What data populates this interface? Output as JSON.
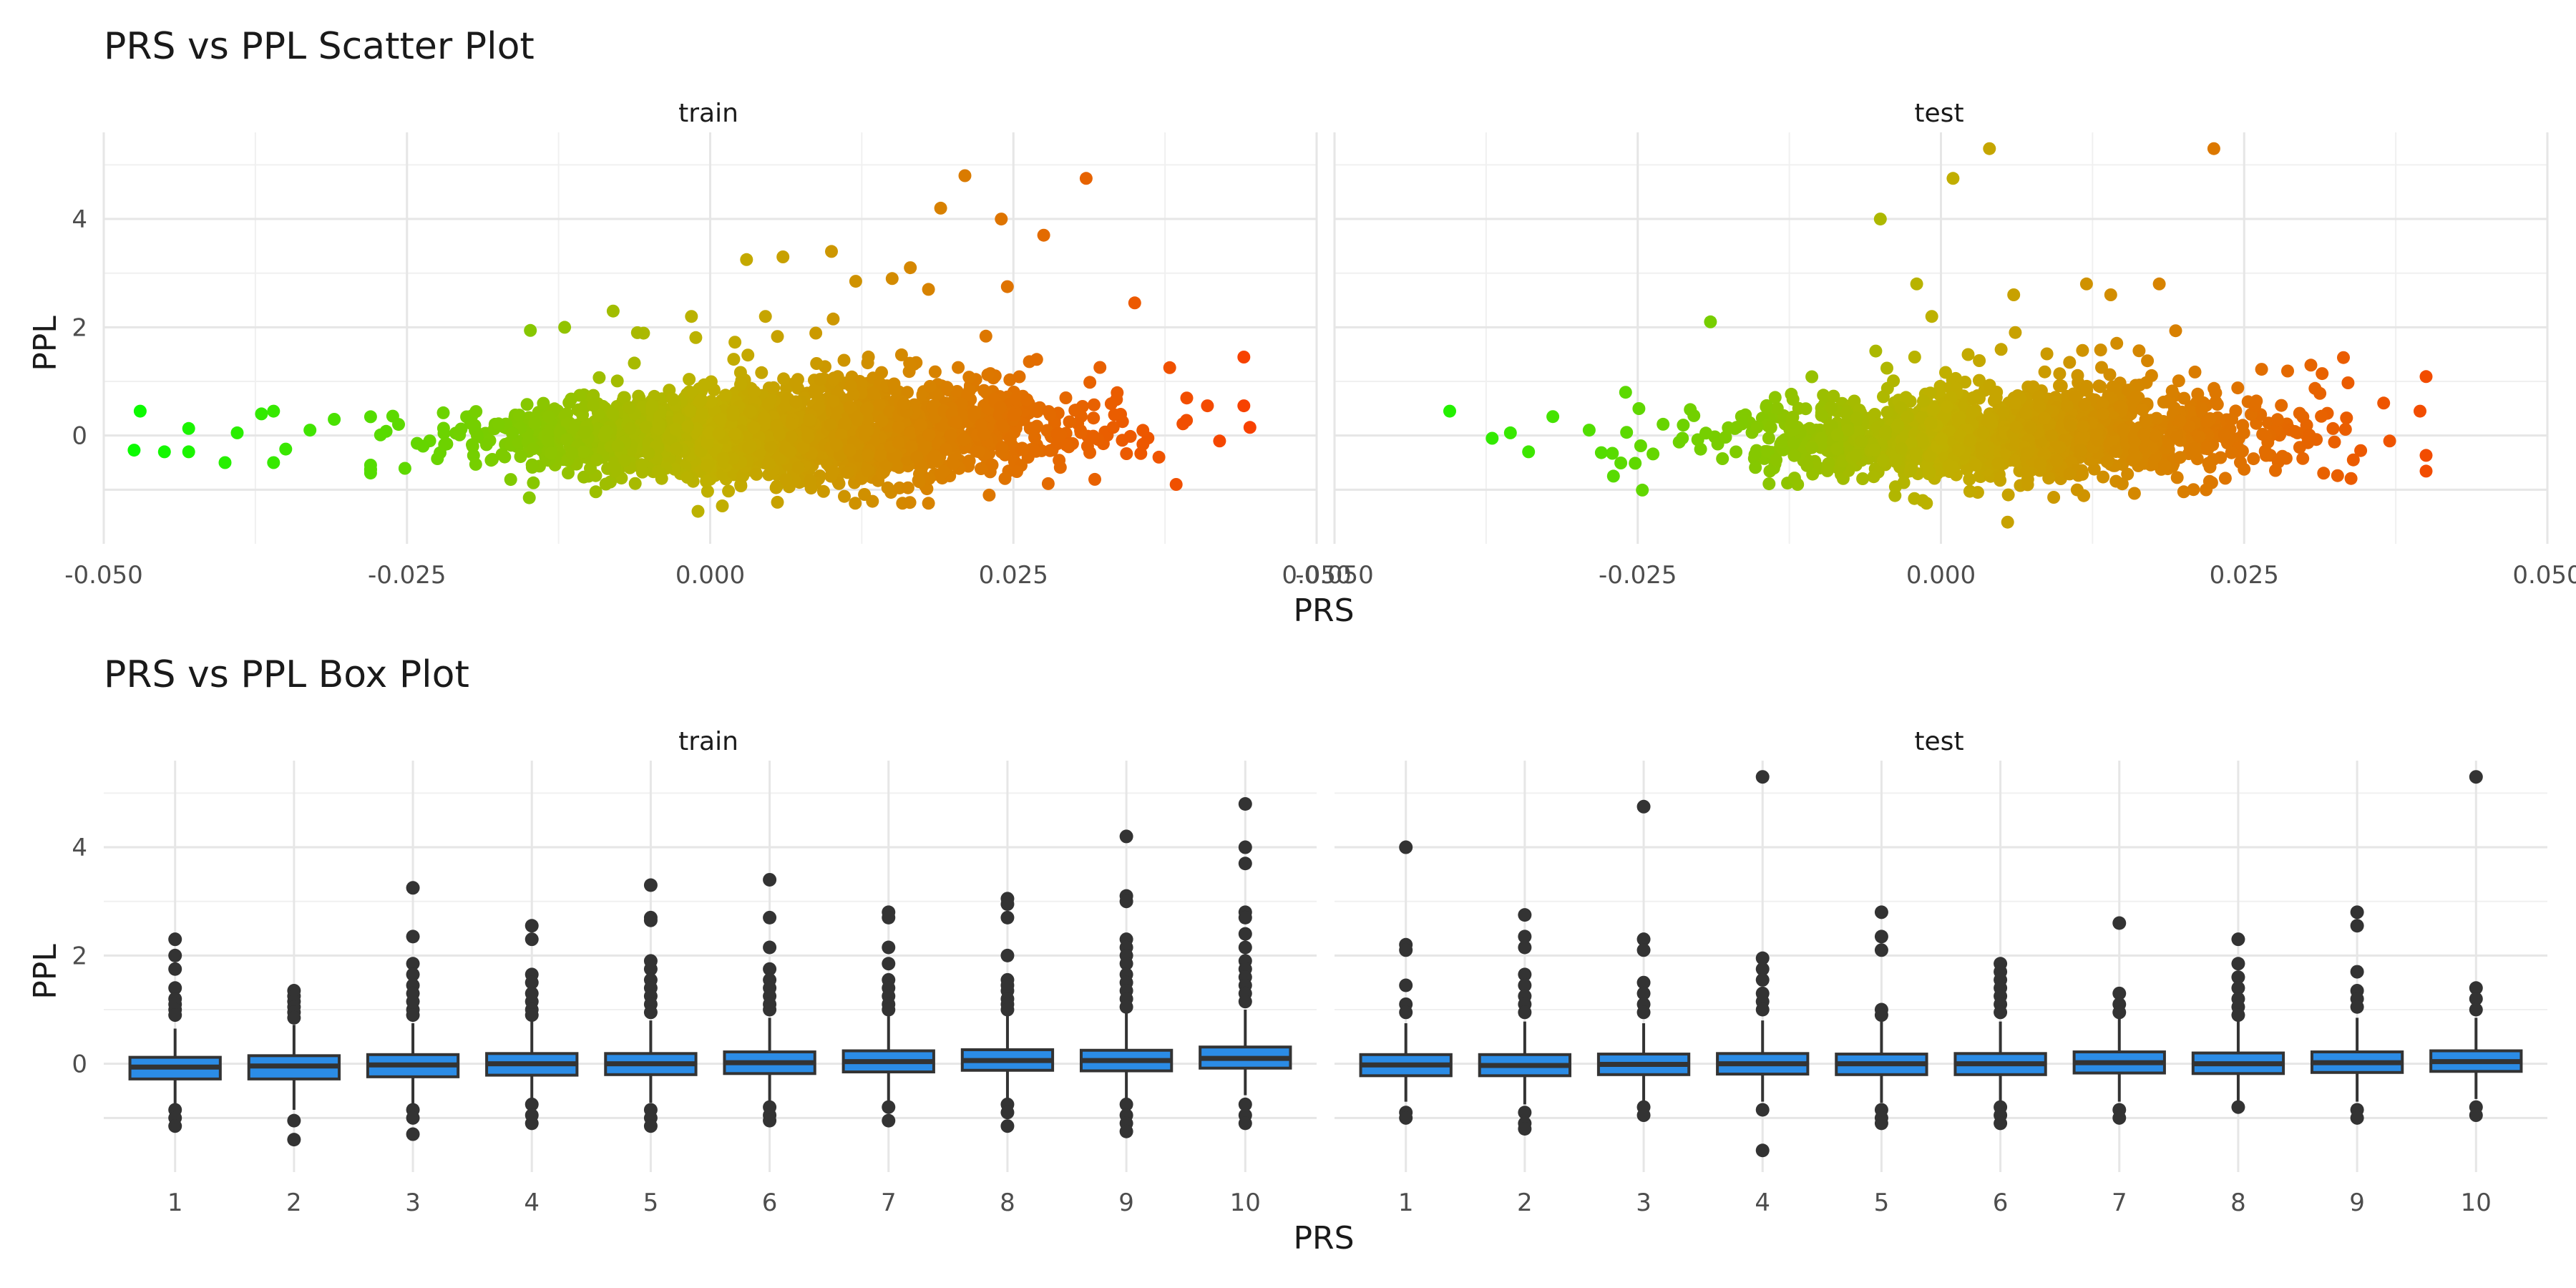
{
  "chart_data": [
    {
      "type": "scatter",
      "title": "PRS vs PPL Scatter Plot",
      "xlabel": "PRS",
      "ylabel": "PPL",
      "grid": true,
      "legend": "none",
      "color_scale": {
        "low": "#00ff00",
        "mid": "#c0b000",
        "high": "#ff3300"
      },
      "x_ticks": [
        "-0.050",
        "-0.025",
        "0.000",
        "0.025",
        "0.050"
      ],
      "y_ticks": [
        "0",
        "2",
        "4"
      ],
      "xlim": [
        -0.05,
        0.05
      ],
      "ylim": [
        -2.0,
        5.6
      ],
      "panels": [
        {
          "strip": "train",
          "outliers": [
            {
              "x": -0.047,
              "y": 0.45
            },
            {
              "x": -0.0475,
              "y": -0.27
            },
            {
              "x": -0.045,
              "y": -0.3
            },
            {
              "x": -0.043,
              "y": 0.13
            },
            {
              "x": -0.043,
              "y": -0.3
            },
            {
              "x": -0.04,
              "y": -0.5
            },
            {
              "x": -0.039,
              "y": 0.05
            },
            {
              "x": -0.037,
              "y": 0.4
            },
            {
              "x": -0.036,
              "y": 0.45
            },
            {
              "x": -0.036,
              "y": -0.5
            },
            {
              "x": -0.035,
              "y": -0.25
            },
            {
              "x": -0.033,
              "y": 0.1
            },
            {
              "x": -0.031,
              "y": 0.3
            },
            {
              "x": -0.012,
              "y": 2.0
            },
            {
              "x": -0.008,
              "y": 2.3
            },
            {
              "x": -0.006,
              "y": 1.9
            },
            {
              "x": -0.001,
              "y": -1.4
            },
            {
              "x": 0.001,
              "y": -1.3
            },
            {
              "x": 0.003,
              "y": 3.25
            },
            {
              "x": 0.006,
              "y": 3.3
            },
            {
              "x": 0.01,
              "y": 3.4
            },
            {
              "x": 0.012,
              "y": 2.85
            },
            {
              "x": 0.015,
              "y": 2.9
            },
            {
              "x": 0.0165,
              "y": 3.1
            },
            {
              "x": 0.018,
              "y": 2.7
            },
            {
              "x": 0.019,
              "y": 4.2
            },
            {
              "x": 0.021,
              "y": 4.8
            },
            {
              "x": 0.024,
              "y": 4.0
            },
            {
              "x": 0.0245,
              "y": 2.75
            },
            {
              "x": 0.0275,
              "y": 3.7
            },
            {
              "x": 0.031,
              "y": 4.75
            },
            {
              "x": 0.035,
              "y": 2.45
            },
            {
              "x": 0.041,
              "y": 0.55
            },
            {
              "x": 0.044,
              "y": 1.45
            },
            {
              "x": 0.044,
              "y": 0.55
            },
            {
              "x": 0.0445,
              "y": 0.15
            },
            {
              "x": 0.042,
              "y": -0.1
            },
            {
              "x": 0.037,
              "y": -0.4
            },
            {
              "x": 0.018,
              "y": -1.25
            },
            {
              "x": 0.023,
              "y": -1.1
            }
          ]
        },
        {
          "strip": "test",
          "outliers": [
            {
              "x": -0.0405,
              "y": 0.45
            },
            {
              "x": -0.037,
              "y": -0.05
            },
            {
              "x": -0.0355,
              "y": 0.05
            },
            {
              "x": -0.034,
              "y": -0.3
            },
            {
              "x": -0.032,
              "y": 0.35
            },
            {
              "x": -0.029,
              "y": 0.1
            },
            {
              "x": -0.027,
              "y": -0.75
            },
            {
              "x": -0.026,
              "y": 0.8
            },
            {
              "x": -0.019,
              "y": 2.1
            },
            {
              "x": -0.005,
              "y": 4.0
            },
            {
              "x": 0.001,
              "y": 4.75
            },
            {
              "x": 0.004,
              "y": 5.3
            },
            {
              "x": 0.0225,
              "y": 5.3
            },
            {
              "x": -0.002,
              "y": 2.8
            },
            {
              "x": 0.006,
              "y": 2.6
            },
            {
              "x": 0.012,
              "y": 2.8
            },
            {
              "x": 0.018,
              "y": 2.8
            },
            {
              "x": 0.014,
              "y": 2.6
            },
            {
              "x": 0.0055,
              "y": -1.6
            },
            {
              "x": -0.0015,
              "y": -1.2
            },
            {
              "x": 0.0305,
              "y": 1.3
            },
            {
              "x": 0.0365,
              "y": 0.6
            },
            {
              "x": 0.0395,
              "y": 0.45
            },
            {
              "x": 0.037,
              "y": -0.1
            },
            {
              "x": 0.034,
              "y": -0.45
            }
          ]
        }
      ]
    },
    {
      "type": "box",
      "title": "PRS vs PPL Box Plot",
      "xlabel": "PRS",
      "ylabel": "PPL",
      "grid": true,
      "legend": "none",
      "box_fill": "#2b8ce6",
      "box_line": "#333333",
      "categories": [
        "1",
        "2",
        "3",
        "4",
        "5",
        "6",
        "7",
        "8",
        "9",
        "10"
      ],
      "y_ticks": [
        "0",
        "2",
        "4"
      ],
      "ylim": [
        -2.0,
        5.6
      ],
      "panels": [
        {
          "strip": "train",
          "boxes": [
            {
              "q1": -0.28,
              "median": -0.06,
              "q3": 0.12,
              "wlo": -0.75,
              "whi": 0.65,
              "out": [
                2.3,
                2.0,
                1.75,
                1.4,
                1.2,
                1.1,
                1.0,
                0.9,
                -0.85,
                -1.0,
                -1.15
              ]
            },
            {
              "q1": -0.28,
              "median": -0.04,
              "q3": 0.15,
              "wlo": -0.85,
              "whi": 0.72,
              "out": [
                1.35,
                1.25,
                1.15,
                1.05,
                0.95,
                0.85,
                -1.4,
                -1.05
              ]
            },
            {
              "q1": -0.24,
              "median": -0.02,
              "q3": 0.17,
              "wlo": -0.75,
              "whi": 0.75,
              "out": [
                3.25,
                2.35,
                1.85,
                1.65,
                1.45,
                1.3,
                1.15,
                1.0,
                0.9,
                -0.85,
                -1.0,
                -1.3
              ]
            },
            {
              "q1": -0.21,
              "median": 0.0,
              "q3": 0.19,
              "wlo": -0.7,
              "whi": 0.8,
              "out": [
                2.55,
                2.3,
                1.65,
                1.5,
                1.3,
                1.15,
                1.0,
                0.9,
                -0.75,
                -0.95,
                -1.1
              ]
            },
            {
              "q1": -0.2,
              "median": 0.0,
              "q3": 0.19,
              "wlo": -0.72,
              "whi": 0.8,
              "out": [
                3.3,
                2.7,
                2.65,
                1.9,
                1.75,
                1.55,
                1.4,
                1.25,
                1.1,
                0.95,
                -0.85,
                -1.0,
                -1.15
              ]
            },
            {
              "q1": -0.18,
              "median": 0.02,
              "q3": 0.22,
              "wlo": -0.72,
              "whi": 0.85,
              "out": [
                3.4,
                2.7,
                2.15,
                1.75,
                1.55,
                1.4,
                1.25,
                1.1,
                1.0,
                -0.8,
                -0.95,
                -1.05
              ]
            },
            {
              "q1": -0.15,
              "median": 0.04,
              "q3": 0.24,
              "wlo": -0.68,
              "whi": 0.88,
              "out": [
                2.8,
                2.7,
                2.15,
                1.85,
                1.55,
                1.4,
                1.25,
                1.1,
                1.0,
                -0.8,
                -1.05
              ]
            },
            {
              "q1": -0.12,
              "median": 0.06,
              "q3": 0.26,
              "wlo": -0.66,
              "whi": 0.9,
              "out": [
                3.05,
                2.95,
                2.7,
                2.0,
                1.55,
                1.45,
                1.35,
                1.2,
                1.1,
                1.0,
                -0.75,
                -0.9,
                -1.15
              ]
            },
            {
              "q1": -0.13,
              "median": 0.06,
              "q3": 0.25,
              "wlo": -0.7,
              "whi": 0.95,
              "out": [
                4.2,
                3.1,
                3.0,
                2.3,
                2.15,
                2.0,
                1.85,
                1.65,
                1.5,
                1.35,
                1.2,
                1.05,
                -0.75,
                -0.95,
                -1.1,
                -1.25
              ]
            },
            {
              "q1": -0.08,
              "median": 0.1,
              "q3": 0.31,
              "wlo": -0.58,
              "whi": 1.0,
              "out": [
                4.8,
                4.0,
                3.7,
                2.8,
                2.7,
                2.4,
                2.15,
                1.9,
                1.75,
                1.6,
                1.45,
                1.3,
                1.15,
                -0.75,
                -0.95,
                -1.1
              ]
            }
          ]
        },
        {
          "strip": "test",
          "boxes": [
            {
              "q1": -0.22,
              "median": -0.02,
              "q3": 0.17,
              "wlo": -0.7,
              "whi": 0.75,
              "out": [
                4.0,
                2.2,
                2.1,
                1.45,
                1.1,
                0.95,
                -0.9,
                -1.0
              ]
            },
            {
              "q1": -0.22,
              "median": -0.03,
              "q3": 0.17,
              "wlo": -0.75,
              "whi": 0.78,
              "out": [
                2.75,
                2.35,
                2.15,
                1.65,
                1.45,
                1.25,
                1.1,
                0.95,
                -0.9,
                -1.1,
                -1.2
              ]
            },
            {
              "q1": -0.2,
              "median": -0.01,
              "q3": 0.18,
              "wlo": -0.7,
              "whi": 0.75,
              "out": [
                4.75,
                2.3,
                2.1,
                1.5,
                1.3,
                1.1,
                0.95,
                -0.8,
                -0.95
              ]
            },
            {
              "q1": -0.19,
              "median": 0.0,
              "q3": 0.19,
              "wlo": -0.7,
              "whi": 0.8,
              "out": [
                5.3,
                1.95,
                1.75,
                1.55,
                1.3,
                1.15,
                1.0,
                -0.85,
                -1.6
              ]
            },
            {
              "q1": -0.2,
              "median": 0.0,
              "q3": 0.18,
              "wlo": -0.72,
              "whi": 0.78,
              "out": [
                2.8,
                2.35,
                2.1,
                1.0,
                0.9,
                -0.85,
                -1.0,
                -1.1
              ]
            },
            {
              "q1": -0.2,
              "median": 0.0,
              "q3": 0.19,
              "wlo": -0.72,
              "whi": 0.78,
              "out": [
                1.85,
                1.7,
                1.55,
                1.4,
                1.25,
                1.1,
                0.95,
                -0.8,
                -0.95,
                -1.1
              ]
            },
            {
              "q1": -0.17,
              "median": 0.02,
              "q3": 0.22,
              "wlo": -0.7,
              "whi": 0.85,
              "out": [
                2.6,
                1.3,
                1.1,
                0.95,
                -0.85,
                -1.0
              ]
            },
            {
              "q1": -0.18,
              "median": 0.0,
              "q3": 0.2,
              "wlo": -0.7,
              "whi": 0.8,
              "out": [
                2.3,
                1.85,
                1.6,
                1.4,
                1.2,
                1.05,
                0.9,
                -0.8
              ]
            },
            {
              "q1": -0.16,
              "median": 0.02,
              "q3": 0.22,
              "wlo": -0.7,
              "whi": 0.85,
              "out": [
                2.8,
                2.55,
                1.7,
                1.35,
                1.2,
                1.05,
                -0.85,
                -1.0
              ]
            },
            {
              "q1": -0.14,
              "median": 0.04,
              "q3": 0.24,
              "wlo": -0.65,
              "whi": 0.85,
              "out": [
                5.3,
                1.4,
                1.2,
                1.0,
                -0.8,
                -0.95
              ]
            }
          ]
        }
      ]
    }
  ]
}
